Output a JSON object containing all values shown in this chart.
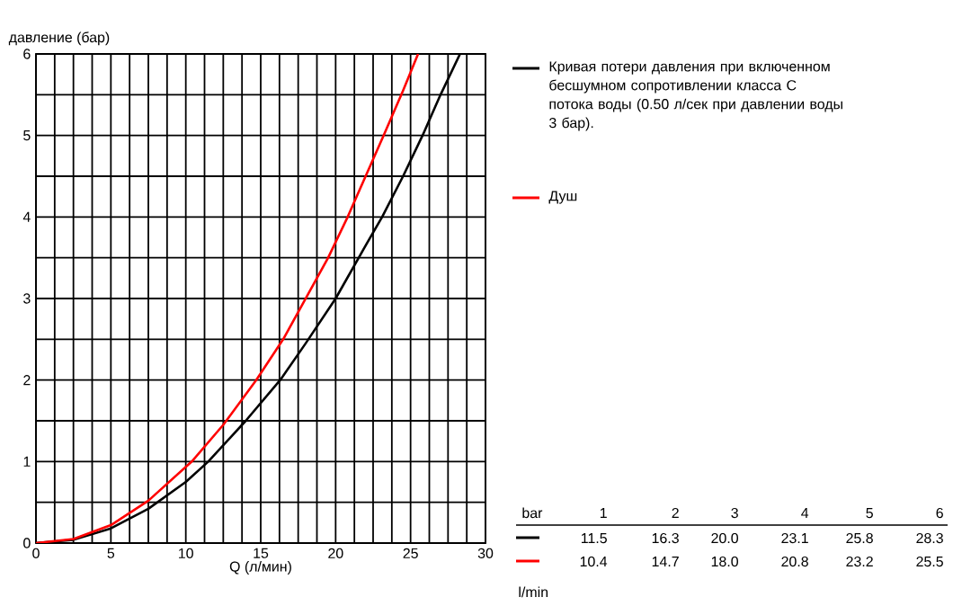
{
  "chart_data": {
    "type": "line",
    "xlabel": "Q (л/мин)",
    "ylabel": "давление (бар)",
    "xlim": [
      0,
      30
    ],
    "ylim": [
      0,
      6
    ],
    "xticks": [
      0,
      5,
      10,
      15,
      20,
      25,
      30
    ],
    "yticks": [
      0,
      1,
      2,
      3,
      4,
      5,
      6
    ],
    "grid": true,
    "legend": "right",
    "marker": "none",
    "line_style": "solid",
    "annotations": [
      "bar",
      "1",
      "2",
      "3",
      "4",
      "5",
      "6",
      "11.5",
      "16.3",
      "20.0",
      "23.1",
      "25.8",
      "28.3",
      "10.4",
      "14.7",
      "18.0",
      "20.8",
      "23.2",
      "25.5",
      "l/min"
    ],
    "series": [
      {
        "name": "Кривая потери давления при включенном бесшумном сопротивлении класса C потока воды (0.50 л/сек при давлении воды 3 бар).",
        "color": "#000000",
        "x": [
          0,
          2.5,
          5,
          7.5,
          10,
          11.5,
          14,
          16.3,
          18,
          20.0,
          22,
          23.1,
          24.5,
          25.8,
          27,
          28.3
        ],
        "values": [
          0,
          0.04,
          0.18,
          0.42,
          0.75,
          1,
          1.5,
          2,
          2.45,
          3,
          3.65,
          4,
          4.5,
          5,
          5.5,
          6
        ]
      },
      {
        "name": "Душ",
        "color": "#ff0000",
        "x": [
          0,
          2.5,
          5,
          7.5,
          10.4,
          12.5,
          14.7,
          16.5,
          18.0,
          19.5,
          20.8,
          22,
          23.2,
          24.5,
          25.5
        ],
        "values": [
          0,
          0.05,
          0.22,
          0.52,
          1,
          1.45,
          2,
          2.5,
          3,
          3.5,
          4,
          4.5,
          5,
          5.55,
          6
        ]
      }
    ]
  }
}
